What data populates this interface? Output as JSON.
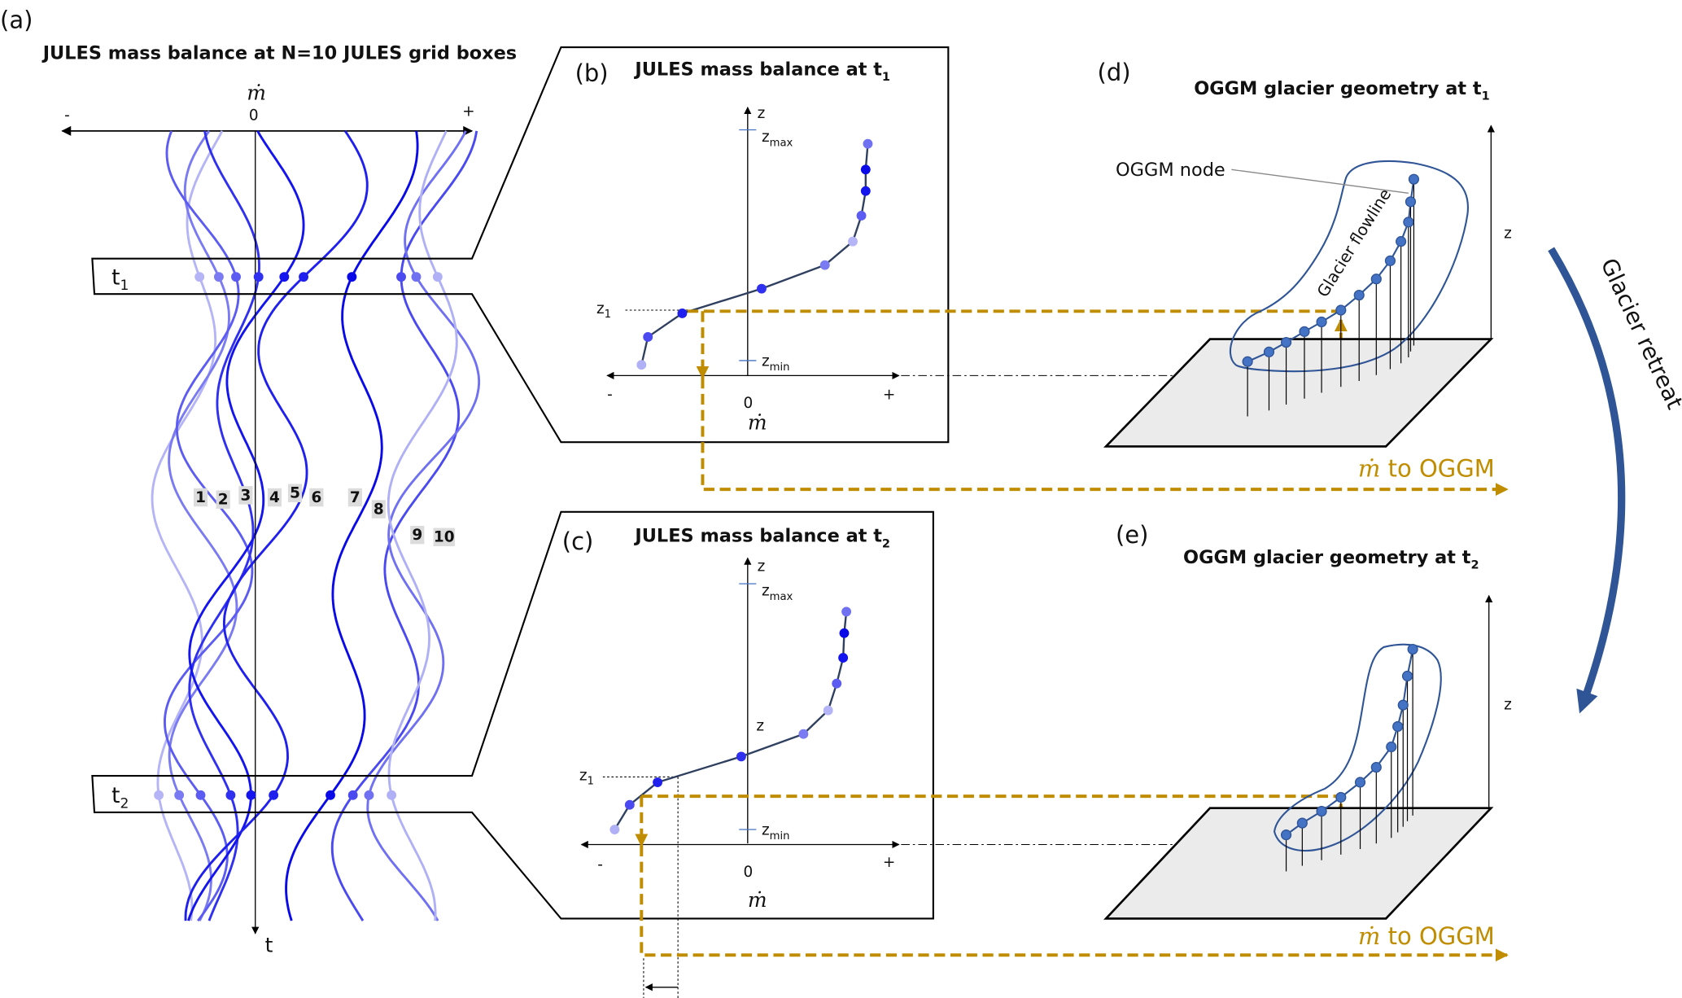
{
  "panel_a": {
    "label": "(a)",
    "title": "JULES mass balance at N=10 JULES grid boxes",
    "axis_symbol": "ṁ",
    "minus": "-",
    "zero": "0",
    "plus": "+",
    "time_label": "t",
    "t1": {
      "base": "t",
      "sub": "1"
    },
    "t2": {
      "base": "t",
      "sub": "2"
    },
    "grid_boxes": [
      "1",
      "2",
      "3",
      "4",
      "5",
      "6",
      "7",
      "8",
      "9",
      "10"
    ],
    "curve_colors": [
      "#b4b4f6",
      "#7a7af2",
      "#5c5cf2",
      "#3030f0",
      "#1414ee",
      "#2020ee",
      "#0a0ae8",
      "#4a4af0",
      "#7070f2",
      "#b0b0f6"
    ]
  },
  "panel_b": {
    "label": "(b)",
    "title": {
      "base": "JULES mass balance at t",
      "sub": "1"
    },
    "z": "z",
    "zmax": {
      "base": "z",
      "sub": "max"
    },
    "zmin": {
      "base": "z",
      "sub": "min"
    },
    "z1": {
      "base": "z",
      "sub": "1"
    },
    "minus": "-",
    "zero": "0",
    "plus": "+",
    "axis_symbol": "ṁ"
  },
  "panel_c": {
    "label": "(c)",
    "title": {
      "base": "JULES mass balance at t",
      "sub": "2"
    },
    "z": "z",
    "z_mid": "z",
    "zmax": {
      "base": "z",
      "sub": "max"
    },
    "zmin": {
      "base": "z",
      "sub": "min"
    },
    "z1": {
      "base": "z",
      "sub": "1"
    },
    "minus": "-",
    "zero": "0",
    "plus": "+",
    "axis_symbol": "ṁ"
  },
  "panel_d": {
    "label": "(d)",
    "title": {
      "base": "OGGM glacier geometry at t",
      "sub": "1"
    },
    "node_label": "OGGM node",
    "flowline_label": "Glacier flowline",
    "z": "z",
    "transfer": {
      "symbol": "ṁ",
      "text": " to OGGM"
    }
  },
  "panel_e": {
    "label": "(e)",
    "title": {
      "base": "OGGM glacier geometry at t",
      "sub": "2"
    },
    "z": "z",
    "transfer": {
      "symbol": "ṁ",
      "text": " to OGGM"
    }
  },
  "retreat_label": "Glacier retreat",
  "colors": {
    "gold": "#c08c00",
    "glacier_blue": "#2f5597",
    "node_fill": "#4472c4",
    "plane": "#ebebeb"
  }
}
